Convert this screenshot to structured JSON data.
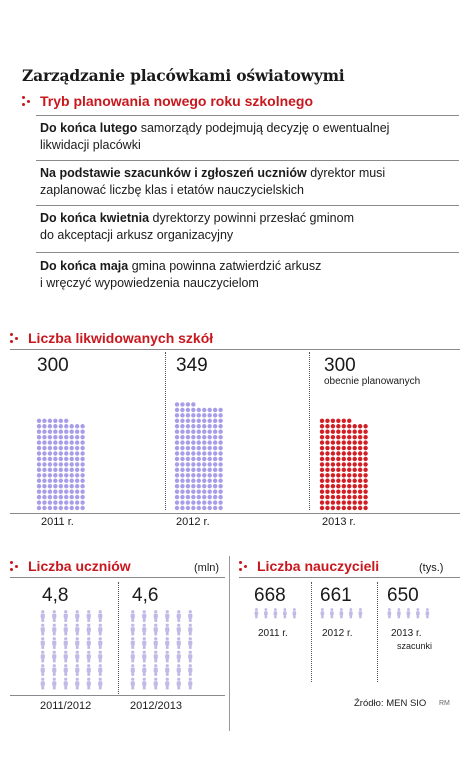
{
  "title": "Zarządzanie placówkami oświatowymi",
  "colors": {
    "accent": "#c8171d",
    "dot_blue": "#a89de8",
    "dot_red": "#d21f26",
    "figure_blue": "#c1bae6"
  },
  "planning": {
    "heading": "Tryb planowania nowego roku szkolnego",
    "steps": [
      {
        "bold": "Do końca lutego",
        "rest": " samorządy podejmują decyzję o ewentualnej",
        "line2": "likwidacji placówki"
      },
      {
        "bold": "Na podstawie szacunków i zgłoszeń uczniów",
        "rest": " dyrektor musi",
        "line2": "zaplanować liczbę klas i etatów nauczycielskich"
      },
      {
        "bold": "Do końca kwietnia",
        "rest": " dyrektorzy powinni przesłać gminom",
        "line2": "do akceptacji arkusz organizacyjny"
      },
      {
        "bold": "Do końca maja",
        "rest": " gmina powinna zatwierdzić arkusz",
        "line2": "i wręczyć wypowiedzenia nauczycielom"
      }
    ]
  },
  "schools": {
    "heading": "Liczba likwidowanych szkół",
    "planned_note": "obecnie planowanych"
  },
  "students": {
    "heading": "Liczba uczniów",
    "unit": "(mln)"
  },
  "teachers": {
    "heading": "Liczba nauczycieli",
    "unit": "(tys.)",
    "estimate_note": "szacunki"
  },
  "chart_data": [
    {
      "type": "bar",
      "title": "Liczba likwidowanych szkół",
      "categories": [
        "2011 r.",
        "2012 r.",
        "2013 r."
      ],
      "values": [
        300,
        349,
        300
      ],
      "data_labels": [
        "300",
        "349",
        "300"
      ],
      "annotations": [
        "obecnie planowanych"
      ]
    },
    {
      "type": "bar",
      "title": "Liczba uczniów",
      "ylabel": "(mln)",
      "categories": [
        "2011/2012",
        "2012/2013"
      ],
      "values": [
        4.8,
        4.6
      ],
      "data_labels": [
        "4,8",
        "4,6"
      ]
    },
    {
      "type": "bar",
      "title": "Liczba nauczycieli",
      "ylabel": "(tys.)",
      "categories": [
        "2011 r.",
        "2012 r.",
        "2013 r."
      ],
      "values": [
        668,
        661,
        650
      ],
      "data_labels": [
        "668",
        "661",
        "650"
      ],
      "annotations": [
        "szacunki"
      ]
    }
  ],
  "source": "Źródło: MEN SIO",
  "author": "RM"
}
